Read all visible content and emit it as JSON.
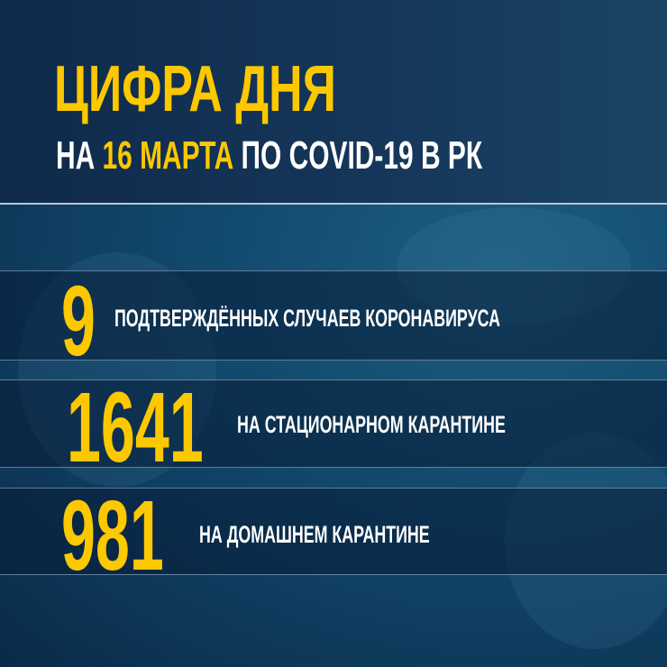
{
  "header": {
    "title": "ЦИФРА ДНЯ",
    "subtitle_prefix": "НА",
    "subtitle_date": "16 МАРТА",
    "subtitle_suffix": "ПО COVID-19 В РК"
  },
  "stats": [
    {
      "value": "9",
      "label": "ПОДТВЕРЖДЁННЫХ СЛУЧАЕВ КОРОНАВИРУСА"
    },
    {
      "value": "1641",
      "label": "НА СТАЦИОНАРНОМ КАРАНТИНЕ"
    },
    {
      "value": "981",
      "label": "НА ДОМАШНЕМ КАРАНТИНЕ"
    }
  ],
  "colors": {
    "accent": "#fcc800",
    "background": "#124a6e",
    "header": "#15365a"
  }
}
